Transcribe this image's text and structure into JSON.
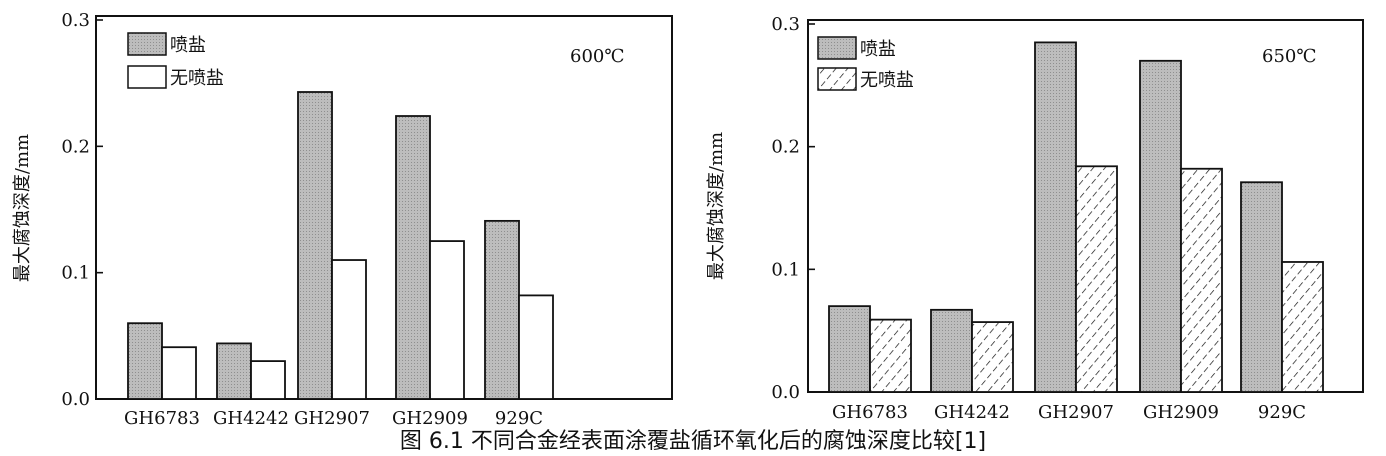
{
  "colors": {
    "spray_fill": "#b9b9b9",
    "no_spray_fill": "#ffffff",
    "axis": "#111111"
  },
  "chart_data": [
    {
      "type": "bar",
      "annotation": "600℃",
      "ylabel": "最大腐蚀深度/mm",
      "xlabel": "",
      "ylim": [
        0,
        0.3
      ],
      "yticks": [
        "0.0",
        "0.1",
        "0.2",
        "0.3"
      ],
      "categories": [
        "GH6783",
        "GH4242",
        "GH2907",
        "GH2909",
        "929C"
      ],
      "legend_position": "top-left",
      "series": [
        {
          "name": "喷盐",
          "pattern": "gray-fill",
          "values": [
            0.06,
            0.044,
            0.243,
            0.224,
            0.141
          ]
        },
        {
          "name": "无喷盐",
          "pattern": "white",
          "values": [
            0.041,
            0.03,
            0.11,
            0.125,
            0.082
          ]
        }
      ]
    },
    {
      "type": "bar",
      "annotation": "650℃",
      "ylabel": "最大腐蚀深度/mm",
      "xlabel": "",
      "ylim": [
        0,
        0.3
      ],
      "yticks": [
        "0.0",
        "0.1",
        "0.2",
        "0.3"
      ],
      "categories": [
        "GH6783",
        "GH4242",
        "GH2907",
        "GH2909",
        "929C"
      ],
      "legend_position": "top-left",
      "series": [
        {
          "name": "喷盐",
          "pattern": "gray-fill",
          "values": [
            0.07,
            0.067,
            0.285,
            0.27,
            0.171
          ]
        },
        {
          "name": "无喷盐",
          "pattern": "hatched",
          "values": [
            0.059,
            0.057,
            0.184,
            0.182,
            0.106
          ]
        }
      ]
    }
  ],
  "caption": "图 6.1  不同合金经表面涂覆盐循环氧化后的腐蚀深度比较[1]"
}
